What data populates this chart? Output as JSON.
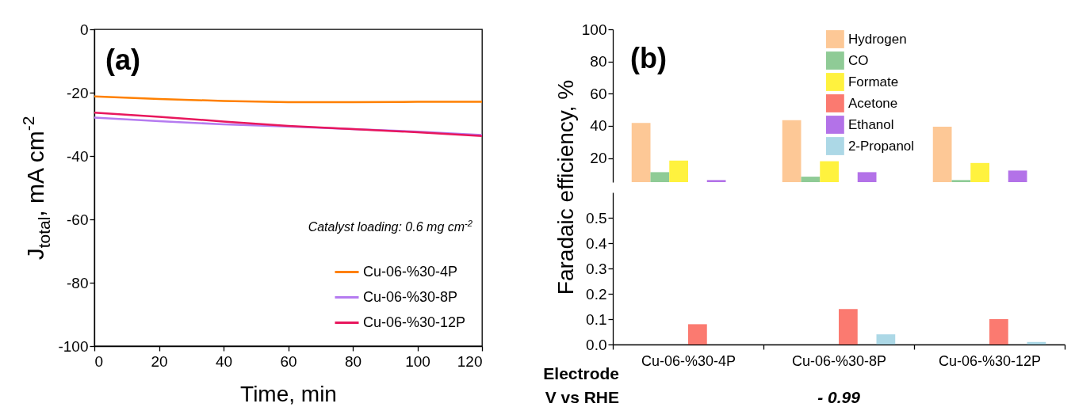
{
  "chart_data": [
    {
      "type": "line",
      "xlabel": "Time, min",
      "ylabel": "J$_{total}$, mA cm$^{-2}$",
      "x": [
        0,
        20,
        40,
        60,
        80,
        100,
        120
      ],
      "series": [
        {
          "name": "Cu-06-%30-4P",
          "color": "#ff8000",
          "values": [
            -21.2,
            -22.0,
            -22.6,
            -23.0,
            -23.0,
            -22.9,
            -22.9
          ]
        },
        {
          "name": "Cu-06-%30-8P",
          "color": "#b57bf0",
          "values": [
            -27.9,
            -29.0,
            -30.0,
            -30.7,
            -31.5,
            -32.3,
            -33.4
          ]
        },
        {
          "name": "Cu-06-%30-12P",
          "color": "#e8175d",
          "values": [
            -26.3,
            -27.6,
            -29.1,
            -30.5,
            -31.5,
            -32.5,
            -33.7
          ]
        }
      ],
      "xlim": [
        0,
        120
      ],
      "ylim": [
        -100,
        0
      ],
      "xticks": [
        0,
        20,
        40,
        60,
        80,
        100,
        120
      ],
      "yticks": [
        -100,
        -80,
        -60,
        -40,
        -20,
        0
      ],
      "legend": "bottom right",
      "grid": false,
      "line_style": "solid",
      "annotations": [
        "(a)",
        "Catalyst loading: 0.6 mg cm$^{-2}$"
      ]
    },
    {
      "type": "bar",
      "categories": [
        null,
        null,
        null
      ],
      "series": [
        {
          "color": "#fdc896",
          "values": [
            41.8,
            43.5,
            39.4
          ]
        },
        {
          "color": "#8fcb96",
          "values": [
            11.2,
            8.4,
            6.3
          ]
        },
        {
          "color": "#fff23e",
          "values": [
            18.4,
            18.0,
            16.9
          ]
        },
        {
          "color": "#b372e8",
          "values": [
            6.3,
            11.2,
            12.2
          ]
        }
      ],
      "ylim": [
        5,
        100
      ],
      "yticks": [
        20,
        40,
        60,
        80,
        100
      ],
      "tick_labels": "y",
      "grid": false,
      "annotations": [
        "(b)"
      ]
    },
    {
      "type": "bar",
      "ylabel": "Faradaic efficiency, %",
      "categories": [
        "Cu-06-%30-4P",
        "Cu-06-%30-8P",
        "Cu-06-%30-12P"
      ],
      "series": [
        {
          "name": "Hydrogen",
          "color": "#fdc896",
          "values": [
            null,
            null,
            null
          ]
        },
        {
          "name": "CO",
          "color": "#8fcb96",
          "values": [
            null,
            null,
            null
          ]
        },
        {
          "name": "Formate",
          "color": "#fff23e",
          "values": [
            null,
            null,
            null
          ]
        },
        {
          "name": "Acetone",
          "color": "#fb7a70",
          "values": [
            0.08,
            0.14,
            0.1
          ]
        },
        {
          "name": "Ethanol",
          "color": "#b372e8",
          "values": [
            null,
            null,
            null
          ]
        },
        {
          "name": "2-Propanol",
          "color": "#acd8e6",
          "values": [
            null,
            0.04,
            0.01
          ]
        }
      ],
      "ylim": [
        0,
        0.6
      ],
      "yticks": [
        {
          "value": 0,
          "label": "0.0"
        },
        0.1,
        0.2,
        0.3,
        0.4,
        0.5
      ],
      "legend": "top",
      "grid": false,
      "annotations": [
        "Electrode",
        "V vs RHE",
        "- 0.99"
      ]
    }
  ]
}
